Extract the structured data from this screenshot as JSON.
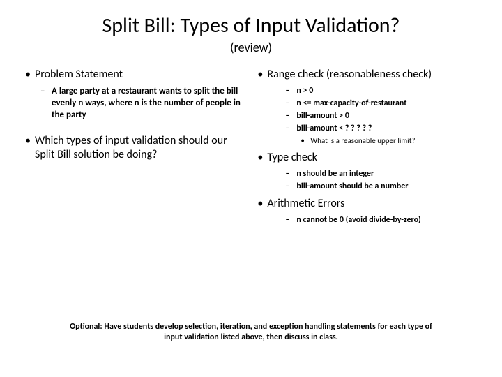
{
  "title": "Split Bill: Types of Input Validation?",
  "subtitle": "(review)",
  "left": {
    "b1": "Problem Statement",
    "b1_sub1": "A large party at a restaurant wants to split the bill evenly n ways, where n is the number of people in the party",
    "b2": "Which types of input validation should our Split Bill solution be doing?"
  },
  "right": {
    "b1": "Range check (reasonableness check)",
    "b1_s1": "n > 0",
    "b1_s2": "n <= max-capacity-of-restaurant",
    "b1_s3": "bill-amount > 0",
    "b1_s4": "bill-amount < ? ? ? ? ?",
    "b1_s4_n1": "What is a reasonable upper limit?",
    "b2": "Type check",
    "b2_s1": "n should be an integer",
    "b2_s2": "bill-amount should be a number",
    "b3": "Arithmetic Errors",
    "b3_s1": "n cannot be 0 (avoid divide-by-zero)"
  },
  "footer": "Optional: Have students develop selection, iteration, and exception handling statements for each type of input validation listed above, then discuss in class."
}
